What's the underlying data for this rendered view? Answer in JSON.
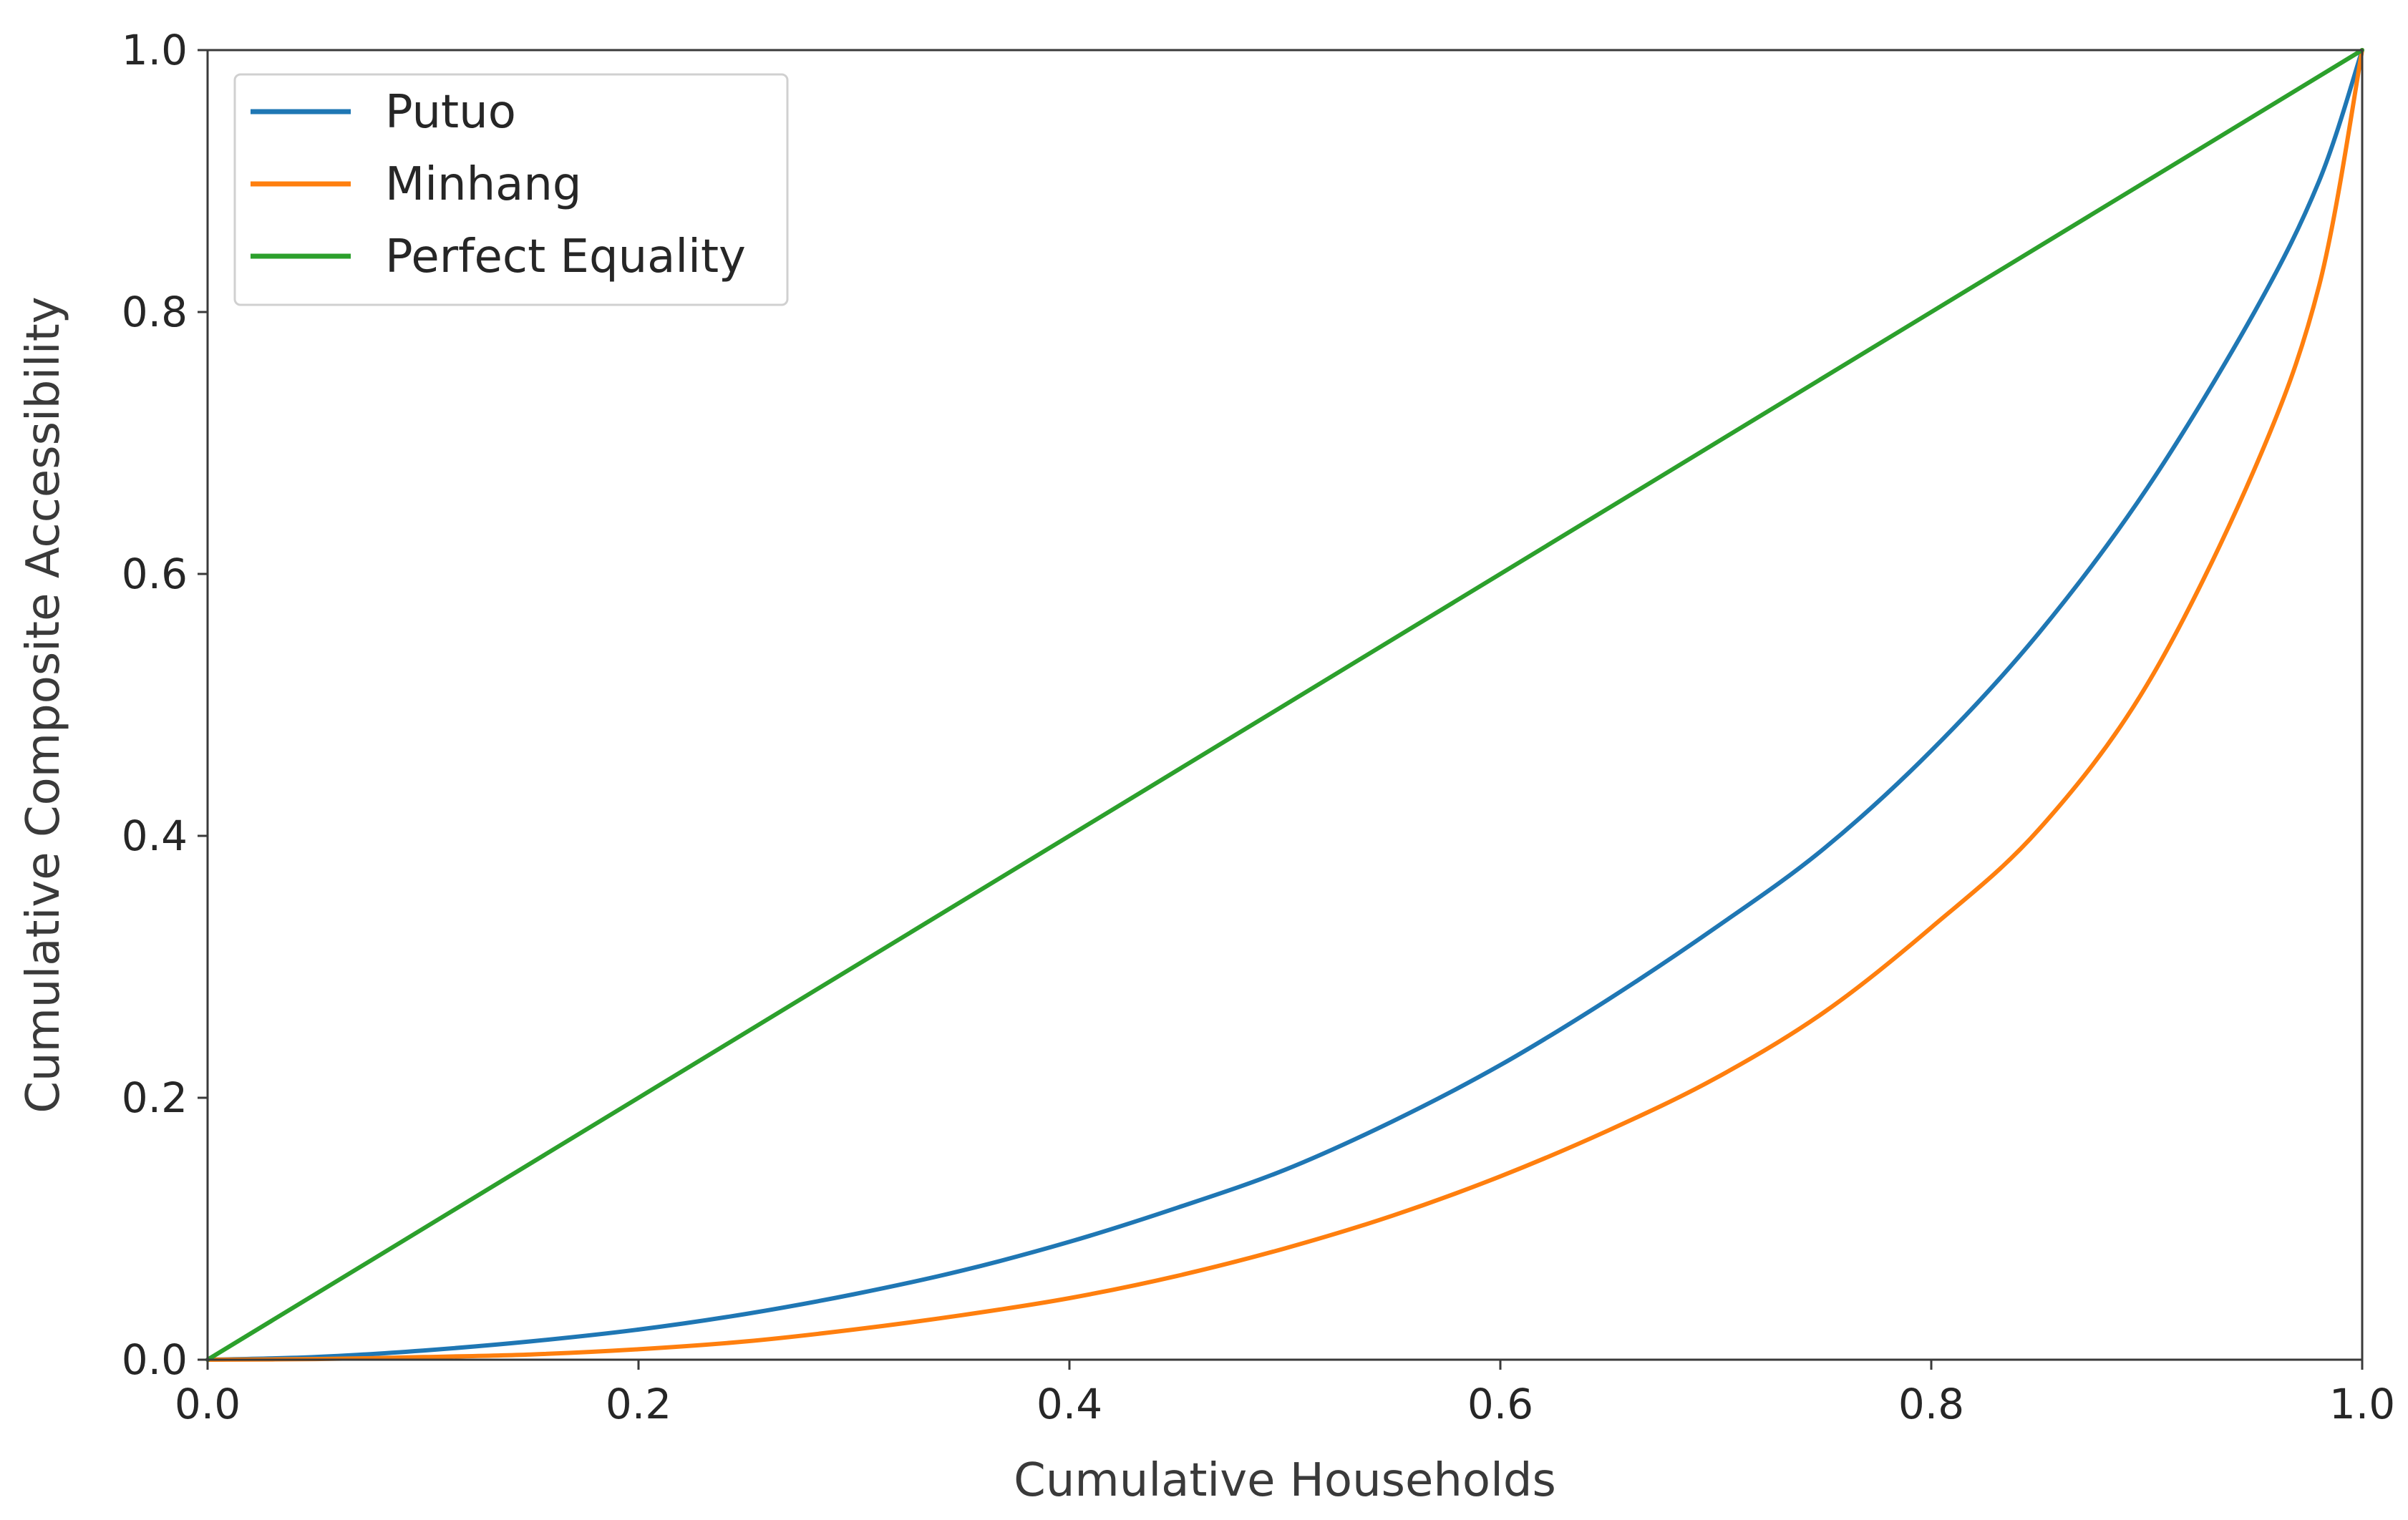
{
  "chart_data": {
    "type": "line",
    "title": "",
    "xlabel": "Cumulative Households",
    "ylabel": "Cumulative Composite Accessibility",
    "xlim": [
      0,
      1
    ],
    "ylim": [
      0,
      1
    ],
    "xticks": [
      "0.0",
      "0.2",
      "0.4",
      "0.6",
      "0.8",
      "1.0"
    ],
    "yticks": [
      "0.0",
      "0.2",
      "0.4",
      "0.6",
      "0.8",
      "1.0"
    ],
    "grid": false,
    "legend": {
      "position": "top-left"
    },
    "series": [
      {
        "name": "Putuo",
        "color": "#1f77b4",
        "x": [
          0,
          0.05,
          0.1,
          0.15,
          0.2,
          0.25,
          0.3,
          0.35,
          0.4,
          0.45,
          0.5,
          0.55,
          0.6,
          0.65,
          0.7,
          0.75,
          0.8,
          0.85,
          0.9,
          0.95,
          0.98,
          1.0
        ],
        "y": [
          0,
          0.002,
          0.007,
          0.014,
          0.023,
          0.035,
          0.05,
          0.068,
          0.09,
          0.116,
          0.145,
          0.182,
          0.225,
          0.275,
          0.33,
          0.39,
          0.465,
          0.555,
          0.665,
          0.8,
          0.9,
          1.0
        ]
      },
      {
        "name": "Minhang",
        "color": "#ff7f0e",
        "x": [
          0,
          0.05,
          0.1,
          0.15,
          0.2,
          0.25,
          0.3,
          0.35,
          0.4,
          0.45,
          0.5,
          0.55,
          0.6,
          0.65,
          0.7,
          0.75,
          0.8,
          0.85,
          0.9,
          0.95,
          0.98,
          1.0
        ],
        "y": [
          0,
          0.0005,
          0.002,
          0.004,
          0.008,
          0.014,
          0.023,
          0.034,
          0.047,
          0.064,
          0.085,
          0.11,
          0.14,
          0.175,
          0.215,
          0.265,
          0.33,
          0.405,
          0.515,
          0.68,
          0.82,
          1.0
        ]
      },
      {
        "name": "Perfect Equality",
        "color": "#2ca02c",
        "x": [
          0,
          1
        ],
        "y": [
          0,
          1
        ]
      }
    ]
  }
}
